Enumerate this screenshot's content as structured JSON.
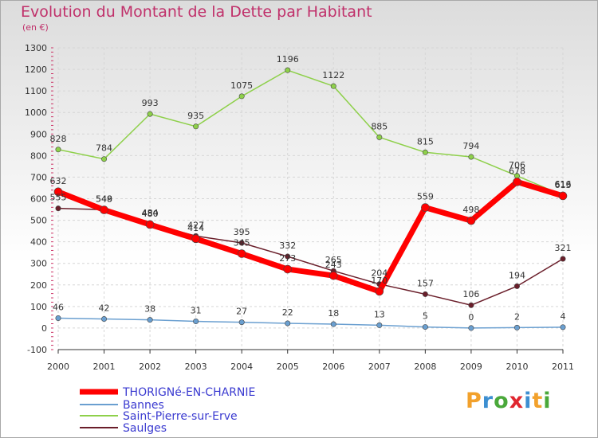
{
  "title": "Evolution du Montant de la Dette par Habitant",
  "unit_label": "(en €)",
  "logo_text": "Proxiti",
  "chart_data": {
    "type": "line",
    "title": "Evolution du Montant de la Dette par Habitant",
    "subtitle": "(en €)",
    "x": [
      "2000",
      "2001",
      "2002",
      "2003",
      "2004",
      "2005",
      "2006",
      "2007",
      "2008",
      "2009",
      "2010",
      "2011"
    ],
    "ylim": [
      -100,
      1300
    ],
    "yticks": [
      -100,
      0,
      100,
      200,
      300,
      400,
      500,
      600,
      700,
      800,
      900,
      1000,
      1100,
      1200,
      1300
    ],
    "grid": true,
    "legend_position": "bottom-left",
    "series": [
      {
        "name": "THORIGNé-EN-CHARNIE",
        "color": "#ff0000",
        "values": [
          632,
          548,
          480,
          414,
          345,
          273,
          243,
          170,
          559,
          498,
          678,
          613
        ],
        "labels": [
          "632",
          "548",
          "480",
          "414",
          "345",
          "273",
          "243",
          "170",
          "559",
          "498",
          "678",
          "613"
        ]
      },
      {
        "name": "Bannes",
        "color": "#6a9fd0",
        "values": [
          46,
          42,
          38,
          31,
          27,
          22,
          18,
          13,
          5,
          0,
          2,
          4
        ],
        "labels": [
          "46",
          "42",
          "38",
          "31",
          "27",
          "22",
          "18",
          "13",
          "5",
          "0",
          "2",
          "4"
        ]
      },
      {
        "name": "Saint-Pierre-sur-Erve",
        "color": "#8ed04a",
        "values": [
          828,
          784,
          993,
          935,
          1075,
          1196,
          1122,
          885,
          815,
          794,
          706,
          616
        ],
        "labels": [
          "828",
          "784",
          "993",
          "935",
          "1075",
          "1196",
          "1122",
          "885",
          "815",
          "794",
          "706",
          "616"
        ]
      },
      {
        "name": "Saulges",
        "color": "#6a1e2a",
        "values": [
          555,
          549,
          484,
          427,
          395,
          332,
          265,
          204,
          157,
          106,
          194,
          321
        ],
        "labels": [
          "555",
          "549",
          "484",
          "427",
          "395",
          "332",
          "265",
          "204",
          "157",
          "106",
          "194",
          "321"
        ]
      }
    ]
  }
}
